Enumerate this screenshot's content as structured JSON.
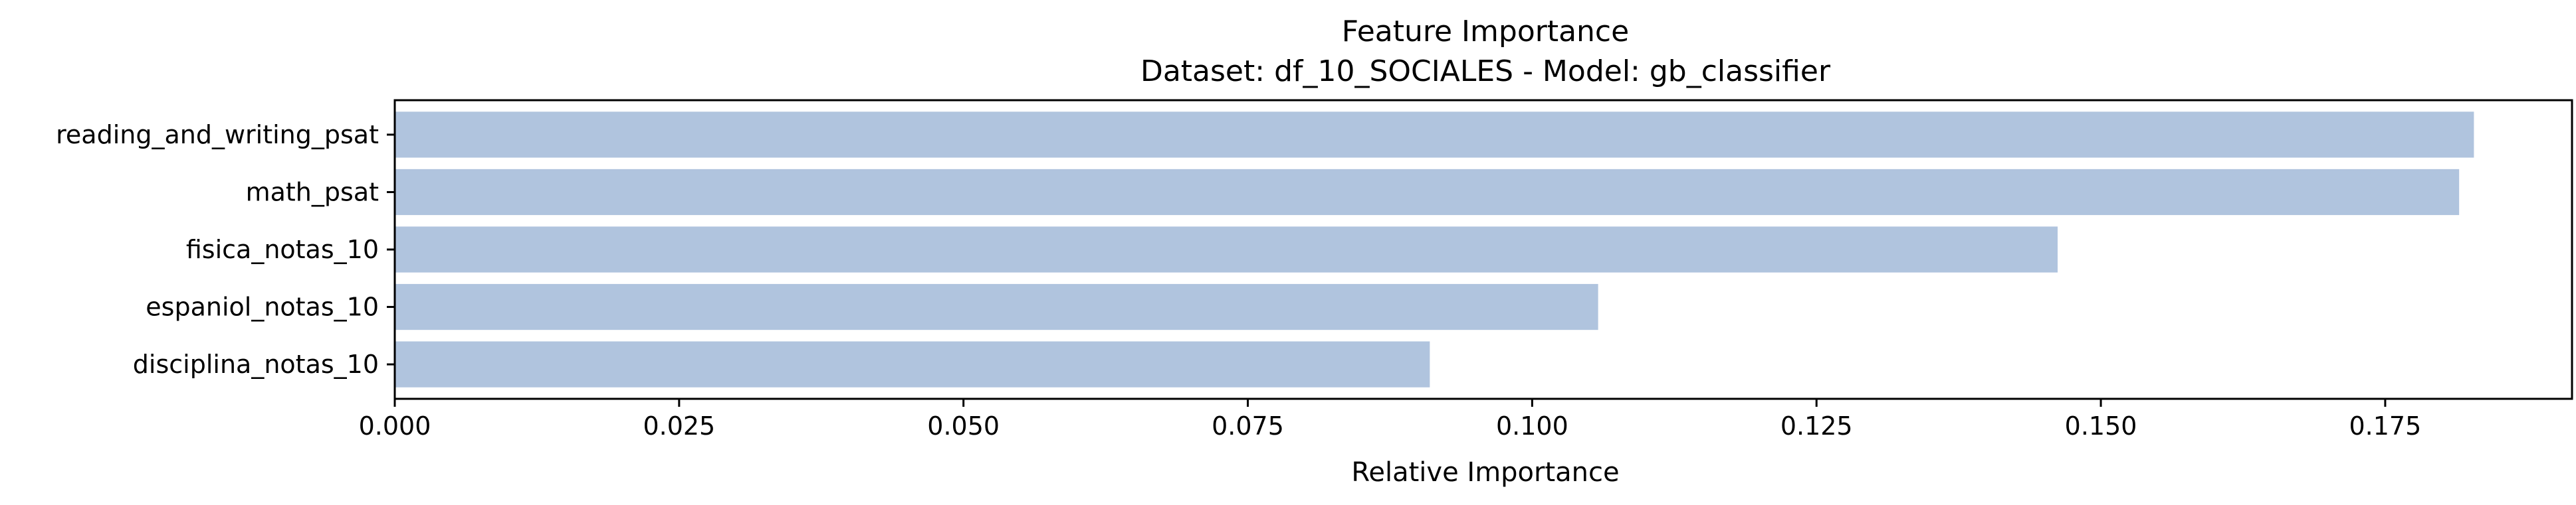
{
  "chart_data": {
    "type": "bar",
    "orientation": "horizontal",
    "title": "Feature Importance",
    "subtitle": "Dataset: df_10_SOCIALES  -  Model: gb_classifier",
    "xlabel": "Relative Importance",
    "ylabel": "",
    "categories": [
      "reading_and_writing_psat",
      "math_psat",
      "fisica_notas_10",
      "espaniol_notas_10",
      "disciplina_notas_10"
    ],
    "values": [
      0.1828,
      0.1815,
      0.1462,
      0.1058,
      0.091
    ],
    "xlim": [
      0,
      0.1916
    ],
    "xticks": [
      "0.000",
      "0.025",
      "0.050",
      "0.075",
      "0.100",
      "0.125",
      "0.150",
      "0.175"
    ],
    "bar_color": "#b0c4de",
    "grid": false,
    "legend": "none"
  }
}
